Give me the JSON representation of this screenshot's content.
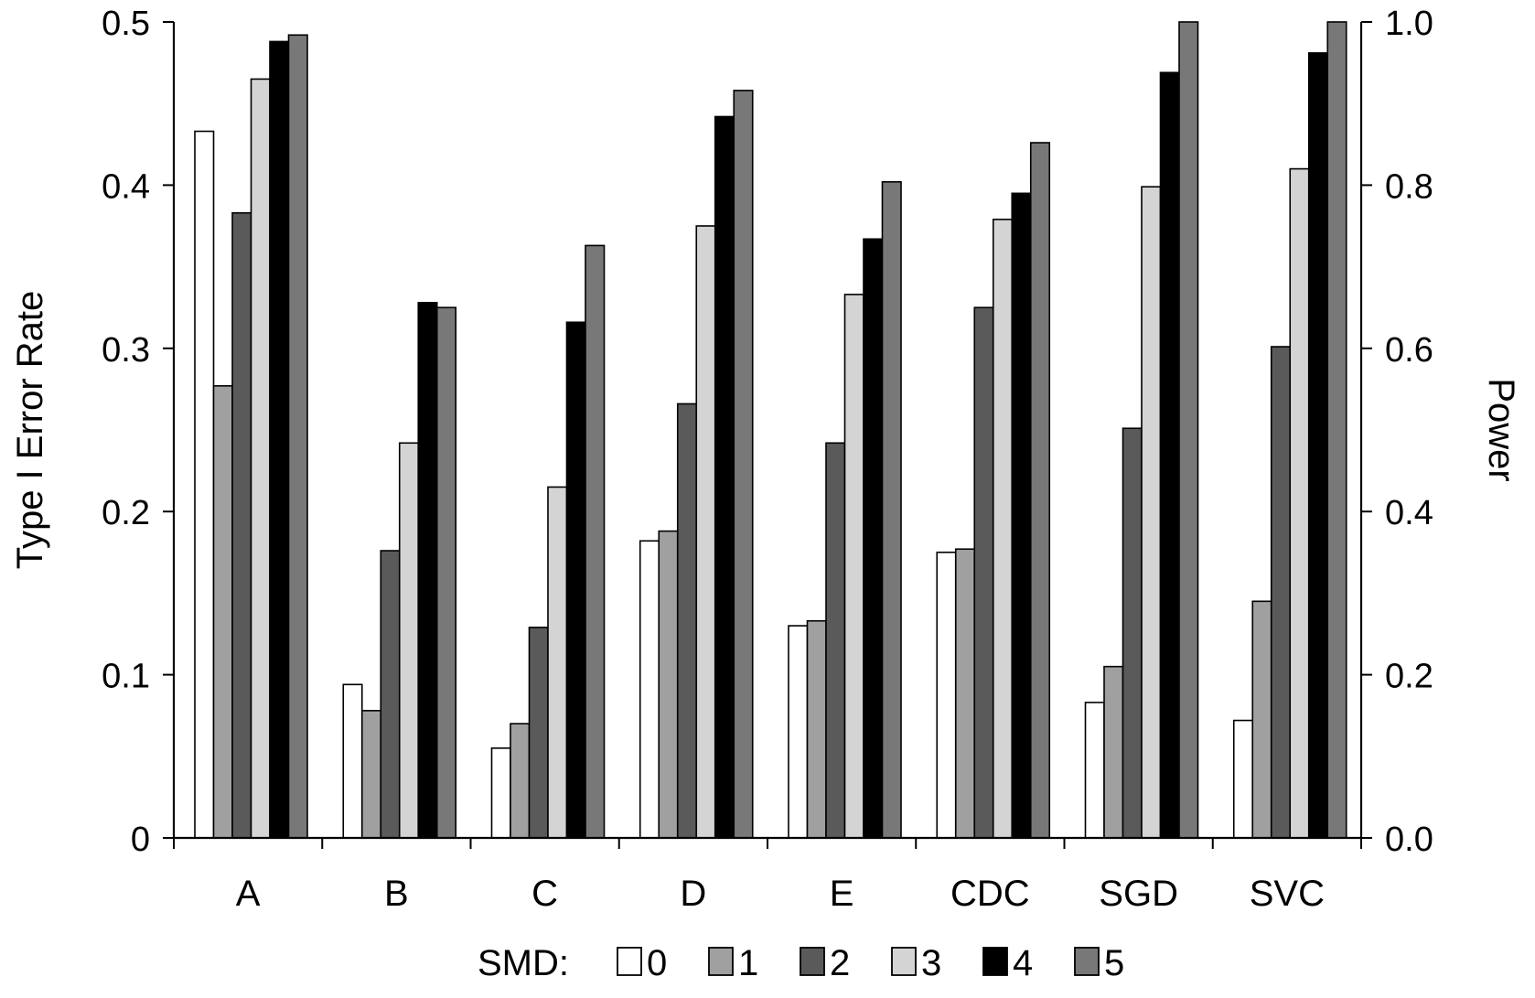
{
  "chart_data": {
    "type": "bar",
    "title": "",
    "xlabel": "",
    "ylabel": "Type I Error Rate",
    "y2label": "Power",
    "ylim": [
      0,
      0.5
    ],
    "y2lim": [
      0.0,
      1.0
    ],
    "yticks": [
      "0",
      "0.1",
      "0.2",
      "0.3",
      "0.4",
      "0.5"
    ],
    "y2ticks": [
      "0.0",
      "0.2",
      "0.4",
      "0.6",
      "0.8",
      "1.0"
    ],
    "categories": [
      "A",
      "B",
      "C",
      "D",
      "E",
      "CDC",
      "SGD",
      "SVC"
    ],
    "legend_title": "SMD:",
    "legend_position": "bottom",
    "grid": false,
    "series": [
      {
        "name": "0",
        "axis": "left",
        "color": "#ffffff",
        "values": [
          0.433,
          0.094,
          0.055,
          0.182,
          0.13,
          0.175,
          0.083,
          0.072
        ]
      },
      {
        "name": "1",
        "axis": "right",
        "color": "#a0a0a0",
        "values": [
          0.554,
          0.156,
          0.14,
          0.376,
          0.266,
          0.354,
          0.21,
          0.29
        ]
      },
      {
        "name": "2",
        "axis": "right",
        "color": "#5a5a5a",
        "values": [
          0.766,
          0.352,
          0.258,
          0.532,
          0.484,
          0.65,
          0.502,
          0.602
        ]
      },
      {
        "name": "3",
        "axis": "right",
        "color": "#d4d4d4",
        "values": [
          0.93,
          0.484,
          0.43,
          0.75,
          0.666,
          0.758,
          0.798,
          0.82
        ]
      },
      {
        "name": "4",
        "axis": "right",
        "color": "#000000",
        "values": [
          0.976,
          0.656,
          0.632,
          0.884,
          0.734,
          0.79,
          0.938,
          0.962
        ]
      },
      {
        "name": "5",
        "axis": "right",
        "color": "#787878",
        "values": [
          0.984,
          0.65,
          0.726,
          0.916,
          0.804,
          0.852,
          1.0,
          1.0
        ]
      }
    ]
  }
}
